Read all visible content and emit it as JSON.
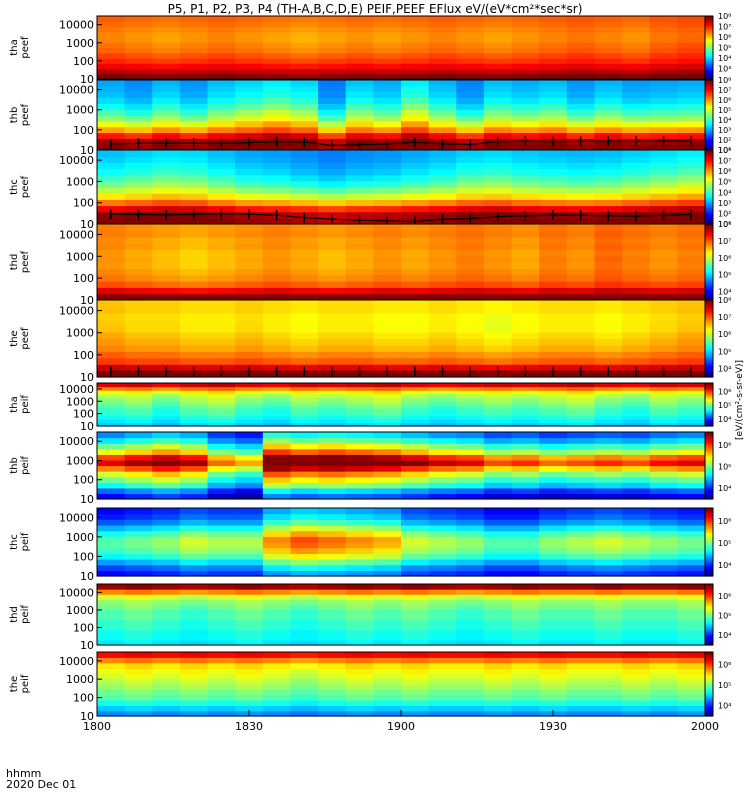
{
  "figure": {
    "title": "P5, P1, P2, P3, P4 (TH-A,B,C,D,E) PEIF,PEEF EFlux eV/(eV*cm²*sec*sr)",
    "time_label": "hhmm",
    "date_label": "2020 Dec 01",
    "colorbar_units": "[eV/(cm²-s-sr-eV)]"
  },
  "chart_data": {
    "type": "heatmap",
    "x": {
      "label": "hhmm",
      "ticks": [
        "1800",
        "1830",
        "1900",
        "1930",
        "2000"
      ],
      "range": [
        0,
        120
      ]
    },
    "y_ticks": [
      "10",
      "100",
      "1000",
      "10000"
    ],
    "y_scale": "log",
    "y_range": [
      10,
      30000
    ],
    "panels": [
      {
        "label": "tha peef",
        "cbar_ticks": [
          "10³",
          "10⁴",
          "10⁵",
          "10⁶",
          "10⁷",
          "10⁸"
        ],
        "cbar_range": [
          2,
          8
        ],
        "profile": [
          7.9,
          7.6,
          7.2,
          6.9,
          6.7,
          6.5,
          6.4,
          6.3,
          6.3,
          6.4,
          6.5,
          6.6
        ],
        "col_mod": [
          0.2,
          0.1,
          0,
          0.1,
          0.2,
          0.1,
          0,
          -0.1,
          0,
          0.1,
          0,
          0.1,
          0.2,
          0.1,
          0,
          0.1,
          0.2,
          0.3,
          0.2,
          0.1,
          0.3,
          0.4
        ]
      },
      {
        "label": "thb peef",
        "cbar_ticks": [
          "10¹",
          "10²",
          "10³",
          "10⁴",
          "10⁵",
          "10⁶",
          "10⁷",
          "10⁸"
        ],
        "cbar_range": [
          1,
          8
        ],
        "profile": [
          8,
          7.8,
          7,
          6,
          5.3,
          4.6,
          4.1,
          3.7,
          3.4,
          3.2,
          3.1,
          3
        ],
        "col_mod": [
          0,
          -0.3,
          0.2,
          -0.2,
          0.3,
          0.6,
          0.9,
          0.6,
          -0.5,
          0.4,
          0.1,
          0.9,
          0.2,
          -0.4,
          0.3,
          0.1,
          0.3,
          -0.2,
          0.2,
          -0.1,
          0,
          0.1
        ],
        "markers": [
          20,
          21.5,
          22,
          22,
          21,
          23,
          26,
          25,
          17,
          18,
          20,
          24,
          20,
          19,
          26,
          28,
          26,
          27,
          28,
          27,
          28,
          28
        ]
      },
      {
        "label": "thc peef",
        "cbar_ticks": [
          "10¹",
          "10²",
          "10³",
          "10⁴",
          "10⁵",
          "10⁶",
          "10⁷",
          "10⁸"
        ],
        "cbar_range": [
          1,
          8
        ],
        "profile": [
          8,
          7.9,
          7.2,
          6.3,
          5.5,
          4.9,
          4.4,
          4,
          3.7,
          3.5,
          3.3,
          3.2
        ],
        "col_mod": [
          0,
          0.2,
          0.4,
          0.3,
          0,
          -0.3,
          -0.4,
          -0.6,
          -0.8,
          -0.6,
          -0.5,
          -0.3,
          -0.1,
          0.2,
          0.3,
          0.1,
          0,
          -0.1,
          0,
          0.2,
          0.4,
          0.6
        ],
        "markers": [
          29,
          28,
          27,
          28,
          30,
          29,
          26,
          20,
          17,
          15,
          14,
          13,
          17,
          18,
          22,
          24,
          27,
          26,
          24,
          23,
          26,
          28
        ]
      },
      {
        "label": "thd peef",
        "cbar_ticks": [
          "10⁴",
          "10⁵",
          "10⁶",
          "10⁷",
          "10⁸"
        ],
        "cbar_range": [
          3.5,
          8
        ],
        "profile": [
          8,
          7.4,
          6.9,
          6.7,
          6.6,
          6.5,
          6.5,
          6.5,
          6.6,
          6.6,
          6.7,
          6.7
        ],
        "col_mod": [
          0.3,
          0.2,
          0.1,
          0,
          0.1,
          0.2,
          0.3,
          0.2,
          0.1,
          0.2,
          0.3,
          0.2,
          0.3,
          0.4,
          0.3,
          0.2,
          0.4,
          0.3,
          0.5,
          0.4,
          0.3,
          0.4
        ]
      },
      {
        "label": "the peef",
        "cbar_ticks": [
          "10⁴",
          "10⁵",
          "10⁶",
          "10⁷",
          "10⁸"
        ],
        "cbar_range": [
          3.5,
          8
        ],
        "profile": [
          8,
          7.5,
          7,
          6.8,
          6.6,
          6.5,
          6.4,
          6.3,
          6.3,
          6.3,
          6.4,
          6.4
        ],
        "col_mod": [
          0.3,
          0.2,
          0.2,
          0.1,
          0.1,
          0.2,
          0.1,
          0,
          0.1,
          0.1,
          0,
          0,
          0.1,
          0,
          -0.1,
          0,
          0.1,
          0.1,
          0,
          0.1,
          0.2,
          0.3
        ],
        "markers": [
          18,
          18,
          18,
          18,
          18,
          18,
          18,
          18,
          18,
          18,
          18,
          18,
          18,
          18,
          18,
          18,
          18,
          18,
          18,
          18,
          18,
          18
        ]
      },
      {
        "label": "tha peif",
        "cbar_ticks": [
          "10⁴",
          "10⁵",
          "10⁶"
        ],
        "cbar_range": [
          3.5,
          6.6
        ],
        "profile": [
          4.5,
          4.6,
          4.7,
          4.8,
          4.8,
          4.9,
          5,
          5.1,
          5.2,
          5.4,
          5.8,
          6.3
        ],
        "col_mod": [
          0,
          0.1,
          -0.1,
          0.1,
          0.2,
          0,
          -0.1,
          0.1,
          0,
          0.1,
          0.2,
          0,
          -0.1,
          0,
          0.1,
          0,
          0.1,
          0.2,
          0,
          -0.1,
          0.1,
          0
        ]
      },
      {
        "label": "thb peif",
        "cbar_ticks": [
          "10⁴",
          "10⁵",
          "10⁶"
        ],
        "cbar_range": [
          3.5,
          6.6
        ],
        "profile": [
          3.9,
          4.2,
          4.7,
          5,
          5.3,
          5.8,
          6.3,
          6,
          5.4,
          5,
          4.6,
          4.3
        ],
        "col_mod": [
          0,
          0.2,
          0.4,
          0.2,
          -0.4,
          -0.6,
          0.8,
          0.6,
          0.7,
          0.6,
          0.5,
          0.3,
          0.1,
          0,
          -0.3,
          -0.2,
          -0.4,
          -0.3,
          -0.2,
          -0.3,
          -0.1,
          0
        ]
      },
      {
        "label": "thc peif",
        "cbar_ticks": [
          "10⁴",
          "10⁵",
          "10⁶"
        ],
        "cbar_range": [
          3.5,
          6.6
        ],
        "profile": [
          4,
          4.2,
          4.5,
          4.8,
          5,
          5.1,
          5.1,
          4.9,
          4.6,
          4.3,
          4.1,
          4
        ],
        "col_mod": [
          -0.2,
          -0.1,
          0,
          0.2,
          0.1,
          0.1,
          0.7,
          0.9,
          0.8,
          0.7,
          0.6,
          0.2,
          0.1,
          0,
          -0.2,
          -0.2,
          0,
          0.1,
          0.2,
          0.1,
          0,
          -0.1
        ]
      },
      {
        "label": "thd peif",
        "cbar_ticks": [
          "10⁴",
          "10⁵",
          "10⁶"
        ],
        "cbar_range": [
          3.5,
          6.6
        ],
        "profile": [
          4.6,
          4.7,
          4.7,
          4.8,
          4.8,
          4.9,
          4.9,
          5,
          5.1,
          5.3,
          5.8,
          6.5
        ],
        "col_mod": [
          0,
          0.1,
          0,
          -0.1,
          0,
          0.1,
          0,
          -0.1,
          0,
          0.1,
          0,
          0.1,
          0,
          -0.1,
          0,
          0.1,
          0,
          0,
          0.1,
          0,
          0,
          0.1
        ]
      },
      {
        "label": "the peif",
        "cbar_ticks": [
          "10⁴",
          "10⁵",
          "10⁶"
        ],
        "cbar_range": [
          3.5,
          6.6
        ],
        "profile": [
          4.3,
          4.5,
          4.7,
          4.9,
          5,
          5.1,
          5.2,
          5.3,
          5.4,
          5.5,
          5.8,
          6.2
        ],
        "col_mod": [
          0,
          0.1,
          0,
          0.1,
          0,
          0.1,
          0,
          -0.1,
          0,
          0.1,
          0,
          0.1,
          0,
          0,
          0.1,
          0,
          0.1,
          0,
          0,
          0.1,
          0,
          0.1
        ]
      }
    ]
  }
}
